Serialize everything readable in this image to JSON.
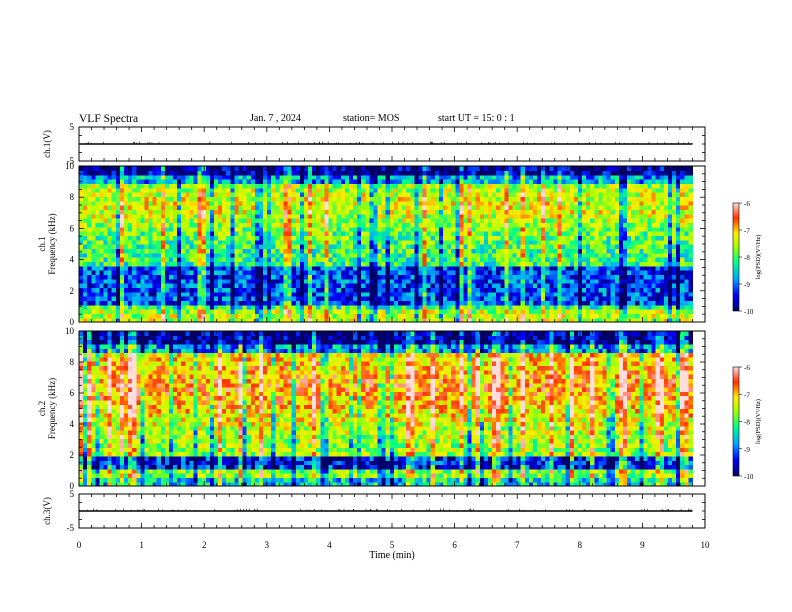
{
  "header": {
    "title": "VLF Spectra",
    "date": "Jan. 7 , 2024",
    "station": "station= MOS",
    "start_ut": "start UT = 15: 0 : 1"
  },
  "colors": {
    "colormap": [
      "#000066",
      "#0000ff",
      "#00aaff",
      "#00ff88",
      "#aaff00",
      "#ffee00",
      "#ff3300",
      "#ffdddd"
    ]
  },
  "chart_data": [
    {
      "type": "line",
      "name": "ch1-waveform",
      "ylabel": "ch.1(V)",
      "ylim": [
        -5,
        5
      ],
      "yticks": [
        5,
        -5
      ],
      "x": [
        0,
        9.8
      ],
      "y": [
        0,
        0
      ]
    },
    {
      "type": "heatmap",
      "name": "ch1-spectrogram",
      "ylabel": "ch.1\nFrequency (kHz)",
      "ylim": [
        0,
        10
      ],
      "yticks": [
        0,
        2,
        4,
        6,
        8,
        10
      ],
      "xlim": [
        0,
        9.8
      ],
      "colorbar": {
        "label": "log(PSD)(V²/Hz)",
        "range": [
          -10,
          -6
        ],
        "ticks": [
          -6,
          -7,
          -8,
          -9,
          -10
        ]
      }
    },
    {
      "type": "heatmap",
      "name": "ch2-spectrogram",
      "ylabel": "ch.2\nFrequency (kHz)",
      "ylim": [
        0,
        10
      ],
      "yticks": [
        0,
        2,
        4,
        6,
        8,
        10
      ],
      "xlim": [
        0,
        9.8
      ],
      "colorbar": {
        "label": "log(PSD)(V²/Hz)",
        "range": [
          -10,
          -6
        ],
        "ticks": [
          -6,
          -7,
          -8,
          -9,
          -10
        ]
      }
    },
    {
      "type": "line",
      "name": "ch3-waveform",
      "ylabel": "ch.3(V)",
      "ylim": [
        -5,
        5
      ],
      "yticks": [
        5,
        -5
      ],
      "x": [
        0,
        9.8
      ],
      "y": [
        0,
        0
      ]
    }
  ],
  "xaxis": {
    "label": "Time (min)",
    "range": [
      0,
      10
    ],
    "ticks": [
      0,
      1,
      2,
      3,
      4,
      5,
      6,
      7,
      8,
      9,
      10
    ]
  }
}
